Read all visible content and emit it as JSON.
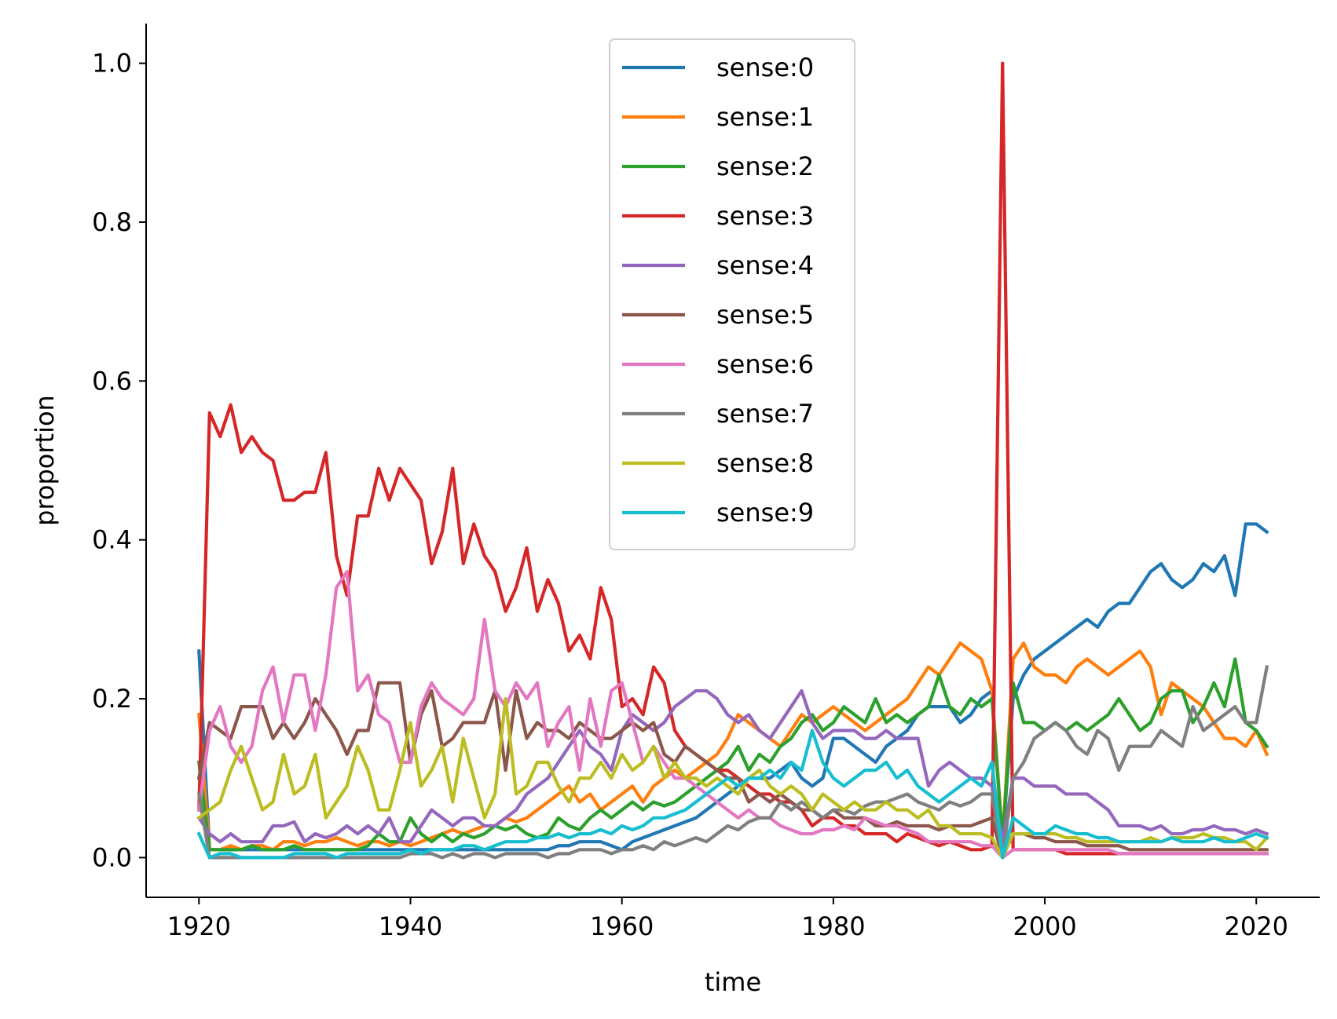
{
  "chart_data": {
    "type": "line",
    "title": "",
    "xlabel": "time",
    "ylabel": "proportion",
    "xlim": [
      1915,
      2026
    ],
    "ylim": [
      -0.05,
      1.05
    ],
    "xticks": [
      1920,
      1940,
      1960,
      1980,
      2000,
      2020
    ],
    "xtick_labels": [
      "1920",
      "1940",
      "1960",
      "1980",
      "2000",
      "2020"
    ],
    "yticks": [
      0.0,
      0.2,
      0.4,
      0.6,
      0.8,
      1.0
    ],
    "ytick_labels": [
      "0.0",
      "0.2",
      "0.4",
      "0.6",
      "0.8",
      "1.0"
    ],
    "grid": false,
    "legend_position": "top-center",
    "x": [
      1920,
      1921,
      1922,
      1923,
      1924,
      1925,
      1926,
      1927,
      1928,
      1929,
      1930,
      1931,
      1932,
      1933,
      1934,
      1935,
      1936,
      1937,
      1938,
      1939,
      1940,
      1941,
      1942,
      1943,
      1944,
      1945,
      1946,
      1947,
      1948,
      1949,
      1950,
      1951,
      1952,
      1953,
      1954,
      1955,
      1956,
      1957,
      1958,
      1959,
      1960,
      1961,
      1962,
      1963,
      1964,
      1965,
      1966,
      1967,
      1968,
      1969,
      1970,
      1971,
      1972,
      1973,
      1974,
      1975,
      1976,
      1977,
      1978,
      1979,
      1980,
      1981,
      1982,
      1983,
      1984,
      1985,
      1986,
      1987,
      1988,
      1989,
      1990,
      1991,
      1992,
      1993,
      1994,
      1995,
      1996,
      1997,
      1998,
      1999,
      2000,
      2001,
      2002,
      2003,
      2004,
      2005,
      2006,
      2007,
      2008,
      2009,
      2010,
      2011,
      2012,
      2013,
      2014,
      2015,
      2016,
      2017,
      2018,
      2019,
      2020,
      2021
    ],
    "series": [
      {
        "name": "sense:0",
        "color": "#1f77b4",
        "values": [
          0.26,
          0.01,
          0.01,
          0.01,
          0.01,
          0.01,
          0.01,
          0.01,
          0.01,
          0.01,
          0.01,
          0.01,
          0.01,
          0.01,
          0.01,
          0.01,
          0.01,
          0.01,
          0.01,
          0.01,
          0.01,
          0.01,
          0.01,
          0.01,
          0.01,
          0.01,
          0.01,
          0.01,
          0.01,
          0.01,
          0.01,
          0.01,
          0.01,
          0.01,
          0.015,
          0.015,
          0.02,
          0.02,
          0.02,
          0.015,
          0.01,
          0.02,
          0.025,
          0.03,
          0.035,
          0.04,
          0.045,
          0.05,
          0.06,
          0.07,
          0.08,
          0.09,
          0.1,
          0.1,
          0.1,
          0.11,
          0.12,
          0.1,
          0.09,
          0.1,
          0.15,
          0.15,
          0.14,
          0.13,
          0.12,
          0.14,
          0.15,
          0.16,
          0.18,
          0.19,
          0.19,
          0.19,
          0.17,
          0.18,
          0.2,
          0.21,
          0.02,
          0.2,
          0.23,
          0.25,
          0.26,
          0.27,
          0.28,
          0.29,
          0.3,
          0.29,
          0.31,
          0.32,
          0.32,
          0.34,
          0.36,
          0.37,
          0.35,
          0.34,
          0.35,
          0.37,
          0.36,
          0.38,
          0.33,
          0.42,
          0.42,
          0.41
        ]
      },
      {
        "name": "sense:1",
        "color": "#ff7f0e",
        "values": [
          0.18,
          0.01,
          0.01,
          0.015,
          0.01,
          0.015,
          0.015,
          0.01,
          0.02,
          0.02,
          0.015,
          0.02,
          0.02,
          0.025,
          0.02,
          0.015,
          0.02,
          0.02,
          0.015,
          0.02,
          0.015,
          0.02,
          0.025,
          0.03,
          0.035,
          0.03,
          0.035,
          0.04,
          0.04,
          0.05,
          0.045,
          0.05,
          0.06,
          0.07,
          0.08,
          0.09,
          0.07,
          0.08,
          0.06,
          0.07,
          0.08,
          0.09,
          0.07,
          0.09,
          0.1,
          0.11,
          0.1,
          0.11,
          0.12,
          0.13,
          0.15,
          0.18,
          0.17,
          0.16,
          0.15,
          0.14,
          0.16,
          0.18,
          0.17,
          0.18,
          0.19,
          0.18,
          0.17,
          0.16,
          0.17,
          0.18,
          0.19,
          0.2,
          0.22,
          0.24,
          0.23,
          0.25,
          0.27,
          0.26,
          0.25,
          0.21,
          0.02,
          0.25,
          0.27,
          0.24,
          0.23,
          0.23,
          0.22,
          0.24,
          0.25,
          0.24,
          0.23,
          0.24,
          0.25,
          0.26,
          0.24,
          0.18,
          0.22,
          0.21,
          0.2,
          0.19,
          0.17,
          0.15,
          0.15,
          0.14,
          0.16,
          0.13
        ]
      },
      {
        "name": "sense:2",
        "color": "#2ca02c",
        "values": [
          0.12,
          0.01,
          0.01,
          0.01,
          0.01,
          0.015,
          0.01,
          0.01,
          0.01,
          0.015,
          0.01,
          0.01,
          0.01,
          0.01,
          0.01,
          0.01,
          0.015,
          0.03,
          0.02,
          0.02,
          0.05,
          0.03,
          0.02,
          0.03,
          0.02,
          0.03,
          0.025,
          0.03,
          0.04,
          0.035,
          0.04,
          0.03,
          0.025,
          0.03,
          0.05,
          0.04,
          0.035,
          0.05,
          0.06,
          0.05,
          0.06,
          0.07,
          0.06,
          0.07,
          0.065,
          0.07,
          0.08,
          0.09,
          0.1,
          0.11,
          0.12,
          0.14,
          0.11,
          0.13,
          0.12,
          0.14,
          0.15,
          0.17,
          0.18,
          0.16,
          0.17,
          0.19,
          0.18,
          0.17,
          0.2,
          0.17,
          0.18,
          0.17,
          0.18,
          0.19,
          0.23,
          0.19,
          0.18,
          0.2,
          0.19,
          0.2,
          0.02,
          0.22,
          0.17,
          0.17,
          0.16,
          0.17,
          0.16,
          0.17,
          0.16,
          0.17,
          0.18,
          0.2,
          0.18,
          0.16,
          0.17,
          0.2,
          0.21,
          0.21,
          0.17,
          0.19,
          0.22,
          0.19,
          0.25,
          0.17,
          0.16,
          0.14
        ]
      },
      {
        "name": "sense:3",
        "color": "#d62728",
        "values": [
          0.06,
          0.56,
          0.53,
          0.57,
          0.51,
          0.53,
          0.51,
          0.5,
          0.45,
          0.45,
          0.46,
          0.46,
          0.51,
          0.38,
          0.33,
          0.43,
          0.43,
          0.49,
          0.45,
          0.49,
          0.47,
          0.45,
          0.37,
          0.41,
          0.49,
          0.37,
          0.42,
          0.38,
          0.36,
          0.31,
          0.34,
          0.39,
          0.31,
          0.35,
          0.32,
          0.26,
          0.28,
          0.25,
          0.34,
          0.3,
          0.19,
          0.2,
          0.18,
          0.24,
          0.22,
          0.16,
          0.14,
          0.13,
          0.12,
          0.11,
          0.11,
          0.1,
          0.09,
          0.08,
          0.08,
          0.07,
          0.07,
          0.06,
          0.04,
          0.05,
          0.05,
          0.04,
          0.04,
          0.03,
          0.03,
          0.03,
          0.02,
          0.03,
          0.025,
          0.02,
          0.015,
          0.02,
          0.015,
          0.01,
          0.01,
          0.015,
          1.0,
          0.01,
          0.01,
          0.01,
          0.01,
          0.01,
          0.005,
          0.005,
          0.005,
          0.005,
          0.005,
          0.005,
          0.005,
          0.005,
          0.005,
          0.005,
          0.005,
          0.005,
          0.005,
          0.005,
          0.005,
          0.005,
          0.005,
          0.005,
          0.005,
          0.005
        ]
      },
      {
        "name": "sense:4",
        "color": "#9467bd",
        "values": [
          0.05,
          0.03,
          0.02,
          0.03,
          0.02,
          0.02,
          0.02,
          0.04,
          0.04,
          0.045,
          0.02,
          0.03,
          0.025,
          0.03,
          0.04,
          0.03,
          0.04,
          0.03,
          0.05,
          0.02,
          0.02,
          0.04,
          0.06,
          0.05,
          0.04,
          0.05,
          0.05,
          0.04,
          0.04,
          0.05,
          0.06,
          0.08,
          0.09,
          0.1,
          0.12,
          0.14,
          0.16,
          0.14,
          0.13,
          0.11,
          0.16,
          0.18,
          0.17,
          0.16,
          0.17,
          0.19,
          0.2,
          0.21,
          0.21,
          0.2,
          0.18,
          0.17,
          0.18,
          0.16,
          0.15,
          0.17,
          0.19,
          0.21,
          0.17,
          0.15,
          0.16,
          0.16,
          0.16,
          0.15,
          0.15,
          0.16,
          0.15,
          0.15,
          0.15,
          0.09,
          0.11,
          0.12,
          0.11,
          0.1,
          0.1,
          0.09,
          0.02,
          0.1,
          0.1,
          0.09,
          0.09,
          0.09,
          0.08,
          0.08,
          0.08,
          0.07,
          0.06,
          0.04,
          0.04,
          0.04,
          0.035,
          0.04,
          0.03,
          0.03,
          0.035,
          0.035,
          0.04,
          0.035,
          0.035,
          0.03,
          0.035,
          0.03
        ]
      },
      {
        "name": "sense:5",
        "color": "#8c564b",
        "values": [
          0.1,
          0.17,
          0.16,
          0.15,
          0.19,
          0.19,
          0.19,
          0.15,
          0.17,
          0.15,
          0.17,
          0.2,
          0.18,
          0.16,
          0.13,
          0.16,
          0.16,
          0.22,
          0.22,
          0.22,
          0.12,
          0.18,
          0.21,
          0.14,
          0.15,
          0.17,
          0.17,
          0.17,
          0.21,
          0.11,
          0.21,
          0.15,
          0.17,
          0.16,
          0.16,
          0.15,
          0.17,
          0.16,
          0.15,
          0.15,
          0.16,
          0.17,
          0.16,
          0.17,
          0.13,
          0.12,
          0.14,
          0.13,
          0.12,
          0.11,
          0.1,
          0.1,
          0.07,
          0.08,
          0.07,
          0.08,
          0.07,
          0.06,
          0.06,
          0.05,
          0.06,
          0.05,
          0.05,
          0.05,
          0.04,
          0.04,
          0.045,
          0.04,
          0.04,
          0.04,
          0.035,
          0.04,
          0.04,
          0.04,
          0.045,
          0.05,
          0.0,
          0.03,
          0.03,
          0.025,
          0.025,
          0.02,
          0.02,
          0.02,
          0.015,
          0.015,
          0.015,
          0.015,
          0.01,
          0.01,
          0.01,
          0.01,
          0.01,
          0.01,
          0.01,
          0.01,
          0.01,
          0.01,
          0.01,
          0.01,
          0.01,
          0.01
        ]
      },
      {
        "name": "sense:6",
        "color": "#e377c2",
        "values": [
          0.06,
          0.16,
          0.19,
          0.14,
          0.12,
          0.14,
          0.21,
          0.24,
          0.17,
          0.23,
          0.23,
          0.16,
          0.23,
          0.34,
          0.36,
          0.21,
          0.23,
          0.18,
          0.17,
          0.12,
          0.12,
          0.19,
          0.22,
          0.2,
          0.19,
          0.18,
          0.2,
          0.3,
          0.21,
          0.19,
          0.22,
          0.2,
          0.22,
          0.14,
          0.17,
          0.19,
          0.11,
          0.2,
          0.14,
          0.21,
          0.22,
          0.17,
          0.12,
          0.14,
          0.12,
          0.1,
          0.1,
          0.09,
          0.08,
          0.07,
          0.06,
          0.05,
          0.06,
          0.05,
          0.05,
          0.04,
          0.035,
          0.03,
          0.03,
          0.035,
          0.035,
          0.04,
          0.035,
          0.05,
          0.045,
          0.04,
          0.04,
          0.035,
          0.03,
          0.02,
          0.02,
          0.02,
          0.02,
          0.02,
          0.015,
          0.015,
          0.0,
          0.01,
          0.01,
          0.01,
          0.01,
          0.01,
          0.01,
          0.01,
          0.01,
          0.01,
          0.01,
          0.005,
          0.005,
          0.005,
          0.005,
          0.005,
          0.005,
          0.005,
          0.005,
          0.005,
          0.005,
          0.005,
          0.005,
          0.005,
          0.005,
          0.005
        ]
      },
      {
        "name": "sense:7",
        "color": "#7f7f7f",
        "values": [
          0.08,
          0.0,
          0.0,
          0.0,
          0.0,
          0.0,
          0.0,
          0.0,
          0.0,
          0.0,
          0.0,
          0.0,
          0.0,
          0.0,
          0.0,
          0.0,
          0.0,
          0.0,
          0.0,
          0.0,
          0.005,
          0.005,
          0.005,
          0.0,
          0.005,
          0.0,
          0.005,
          0.005,
          0.0,
          0.005,
          0.005,
          0.005,
          0.005,
          0.0,
          0.005,
          0.005,
          0.01,
          0.01,
          0.01,
          0.005,
          0.01,
          0.01,
          0.015,
          0.01,
          0.02,
          0.015,
          0.02,
          0.025,
          0.02,
          0.03,
          0.04,
          0.035,
          0.045,
          0.05,
          0.05,
          0.07,
          0.06,
          0.07,
          0.06,
          0.05,
          0.06,
          0.06,
          0.055,
          0.065,
          0.07,
          0.07,
          0.075,
          0.08,
          0.07,
          0.065,
          0.06,
          0.07,
          0.065,
          0.07,
          0.08,
          0.08,
          0.0,
          0.1,
          0.12,
          0.15,
          0.16,
          0.17,
          0.16,
          0.14,
          0.13,
          0.16,
          0.15,
          0.11,
          0.14,
          0.14,
          0.14,
          0.16,
          0.15,
          0.14,
          0.19,
          0.16,
          0.17,
          0.18,
          0.19,
          0.17,
          0.17,
          0.24
        ]
      },
      {
        "name": "sense:8",
        "color": "#bcbd22",
        "values": [
          0.05,
          0.06,
          0.07,
          0.11,
          0.14,
          0.1,
          0.06,
          0.07,
          0.13,
          0.08,
          0.09,
          0.13,
          0.05,
          0.07,
          0.09,
          0.14,
          0.11,
          0.06,
          0.06,
          0.11,
          0.17,
          0.09,
          0.11,
          0.14,
          0.07,
          0.15,
          0.1,
          0.05,
          0.08,
          0.2,
          0.08,
          0.09,
          0.12,
          0.12,
          0.09,
          0.07,
          0.1,
          0.1,
          0.12,
          0.1,
          0.13,
          0.11,
          0.12,
          0.14,
          0.1,
          0.12,
          0.1,
          0.1,
          0.09,
          0.1,
          0.09,
          0.08,
          0.1,
          0.11,
          0.09,
          0.08,
          0.09,
          0.08,
          0.06,
          0.08,
          0.07,
          0.06,
          0.07,
          0.06,
          0.06,
          0.07,
          0.06,
          0.06,
          0.05,
          0.06,
          0.04,
          0.04,
          0.03,
          0.03,
          0.03,
          0.025,
          0.0,
          0.03,
          0.03,
          0.03,
          0.03,
          0.03,
          0.025,
          0.025,
          0.02,
          0.02,
          0.02,
          0.02,
          0.02,
          0.02,
          0.025,
          0.02,
          0.025,
          0.025,
          0.025,
          0.03,
          0.025,
          0.025,
          0.02,
          0.02,
          0.01,
          0.025
        ]
      },
      {
        "name": "sense:9",
        "color": "#17becf",
        "values": [
          0.03,
          0.0,
          0.005,
          0.005,
          0.0,
          0.0,
          0.0,
          0.0,
          0.0,
          0.005,
          0.005,
          0.005,
          0.005,
          0.0,
          0.005,
          0.005,
          0.005,
          0.005,
          0.005,
          0.005,
          0.01,
          0.005,
          0.01,
          0.01,
          0.01,
          0.015,
          0.015,
          0.01,
          0.015,
          0.02,
          0.02,
          0.02,
          0.025,
          0.025,
          0.03,
          0.025,
          0.03,
          0.03,
          0.035,
          0.03,
          0.04,
          0.035,
          0.04,
          0.05,
          0.05,
          0.055,
          0.06,
          0.07,
          0.08,
          0.09,
          0.1,
          0.09,
          0.1,
          0.1,
          0.11,
          0.1,
          0.12,
          0.11,
          0.16,
          0.12,
          0.1,
          0.09,
          0.1,
          0.11,
          0.11,
          0.12,
          0.1,
          0.11,
          0.09,
          0.08,
          0.07,
          0.08,
          0.09,
          0.1,
          0.09,
          0.12,
          0.0,
          0.05,
          0.04,
          0.03,
          0.03,
          0.04,
          0.035,
          0.03,
          0.03,
          0.025,
          0.025,
          0.02,
          0.02,
          0.02,
          0.02,
          0.02,
          0.025,
          0.02,
          0.02,
          0.02,
          0.025,
          0.02,
          0.02,
          0.025,
          0.03,
          0.025
        ]
      }
    ]
  }
}
